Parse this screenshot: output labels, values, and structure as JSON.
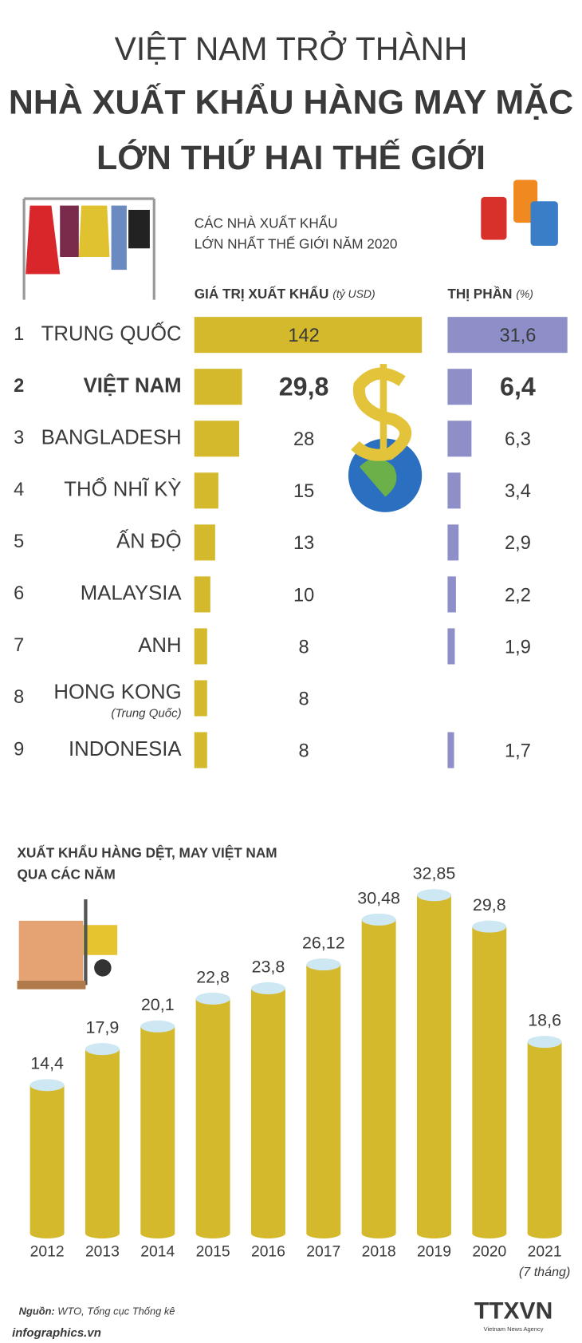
{
  "header": {
    "title_lines": [
      "VIỆT NAM TRỞ THÀNH",
      "NHÀ XUẤT KHẨU HÀNG MAY MẶC",
      "LỚN THỨ HAI THẾ GIỚI"
    ],
    "color": "#ec7a2e"
  },
  "chart_data": [
    {
      "type": "hbar",
      "title": [
        "CÁC NHÀ XUẤT KHẨU",
        "LỚN NHẤT THẾ GIỚI NĂM 2020"
      ],
      "ranks": [
        1,
        2,
        3,
        4,
        5,
        6,
        7,
        8,
        9
      ],
      "categories": [
        "TRUNG QUỐC",
        "VIỆT NAM",
        "BANGLADESH",
        "THỔ NHĨ KỲ",
        "ẤN ĐỘ",
        "MALAYSIA",
        "ANH",
        "HONG KONG",
        "INDONESIA"
      ],
      "category_notes": [
        null,
        null,
        null,
        null,
        null,
        null,
        null,
        "(Trung Quốc)",
        null
      ],
      "highlight_category": "VIỆT NAM",
      "highlight_color": "#e8562a",
      "series": [
        {
          "name": "GIÁ TRỊ XUẤT KHẨU",
          "unit": "(tỷ USD)",
          "color": "#d3b92b",
          "values": [
            142,
            29.8,
            28,
            15,
            13,
            10,
            8,
            8,
            8
          ],
          "value_labels": [
            "142",
            "29,8",
            "28",
            "15",
            "13",
            "10",
            "8",
            "8",
            "8"
          ]
        },
        {
          "name": "THỊ PHẦN",
          "unit": "(%)",
          "color": "#8e8fc8",
          "values": [
            31.6,
            6.4,
            6.3,
            3.4,
            2.9,
            2.2,
            1.9,
            null,
            1.7
          ],
          "value_labels": [
            "31,6",
            "6,4",
            "6,3",
            "3,4",
            "2,9",
            "2,2",
            "1,9",
            null,
            "1,7"
          ]
        }
      ]
    },
    {
      "type": "cylinder",
      "title": [
        "XUẤT KHẨU HÀNG DỆT, MAY VIỆT NAM",
        "QUA CÁC NĂM"
      ],
      "categories": [
        "2012",
        "2013",
        "2014",
        "2015",
        "2016",
        "2017",
        "2018",
        "2019",
        "2020",
        "2021"
      ],
      "category_notes": [
        null,
        null,
        null,
        null,
        null,
        null,
        null,
        null,
        null,
        "(7 tháng)"
      ],
      "color": "#d3b92b",
      "cap_color": "#cde7f3",
      "values": [
        14.4,
        17.9,
        20.1,
        22.8,
        23.8,
        26.12,
        30.48,
        32.85,
        29.8,
        18.6
      ],
      "value_labels": [
        "14,4",
        "17,9",
        "20,1",
        "22,8",
        "23,8",
        "26,12",
        "30,48",
        "32,85",
        "29,8",
        "18,6"
      ]
    }
  ],
  "footer": {
    "source_label": "Nguồn:",
    "source": "WTO, Tổng cục Thống kê",
    "site": "infographics.vn",
    "logo": "TTXVN",
    "logo_sub": "Vietnam News Agency"
  }
}
